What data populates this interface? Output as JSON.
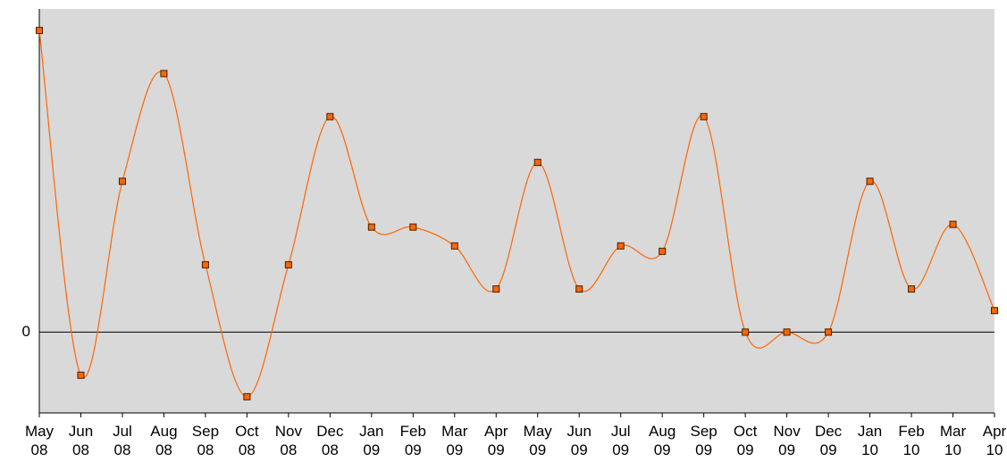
{
  "chart_data": {
    "type": "line",
    "categories": [
      "May 08",
      "Jun 08",
      "Jul 08",
      "Aug 08",
      "Sep 08",
      "Oct 08",
      "Nov 08",
      "Dec 08",
      "Jan 09",
      "Feb 09",
      "Mar 09",
      "Apr 09",
      "May 09",
      "Jun 09",
      "Jul 09",
      "Aug 09",
      "Sep 09",
      "Oct 09",
      "Nov 09",
      "Dec 09",
      "Jan 10",
      "Feb 10",
      "Mar 10",
      "Apr 10"
    ],
    "values": [
      11.2,
      -1.6,
      5.6,
      9.6,
      2.5,
      -2.4,
      2.5,
      8.0,
      3.9,
      3.9,
      3.2,
      1.6,
      6.3,
      1.6,
      3.2,
      3.0,
      8.0,
      0,
      0,
      0,
      5.6,
      1.6,
      4.0,
      0.8
    ],
    "color": "#ff6600",
    "ylim": [
      -3,
      12
    ],
    "yticks": [
      0
    ]
  }
}
